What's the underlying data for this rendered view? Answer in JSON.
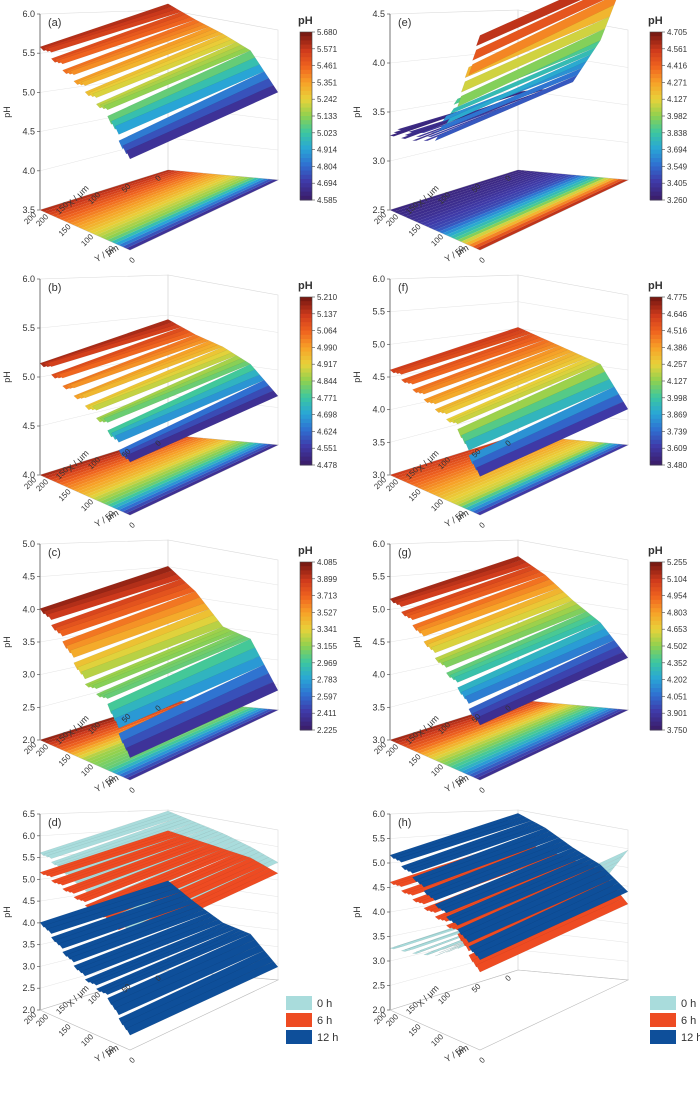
{
  "chart_data": [
    {
      "panel_label": "(a)",
      "type": "surface3d",
      "z_ticks": [
        "6.0",
        "5.5",
        "5.0",
        "4.5",
        "4.0",
        "3.5"
      ],
      "z_label": "pH",
      "x_label": "X / μm",
      "y_label": "Y / μm",
      "x_ticks": [
        "0",
        "50",
        "100",
        "150",
        "200"
      ],
      "y_ticks": [
        "200",
        "150",
        "100",
        "50",
        "0"
      ],
      "colorbar_title": "pH",
      "colorbar_ticks": [
        "5.680",
        "5.571",
        "5.461",
        "5.351",
        "5.242",
        "5.133",
        "5.023",
        "4.914",
        "4.804",
        "4.694",
        "4.585"
      ],
      "profile_y": [
        200,
        150,
        100,
        50,
        0
      ],
      "profile_ph": [
        5.62,
        5.45,
        5.3,
        5.12,
        4.62
      ]
    },
    {
      "panel_label": "(e)",
      "type": "surface3d",
      "z_ticks": [
        "4.5",
        "4.0",
        "3.5",
        "3.0",
        "2.5"
      ],
      "z_label": "pH",
      "x_label": "X / μm",
      "y_label": "Y / μm",
      "x_ticks": [
        "0",
        "50",
        "100",
        "150",
        "200"
      ],
      "y_ticks": [
        "200",
        "150",
        "100",
        "50",
        "0"
      ],
      "colorbar_title": "pH",
      "colorbar_ticks": [
        "4.705",
        "4.561",
        "4.416",
        "4.271",
        "4.127",
        "3.982",
        "3.838",
        "3.694",
        "3.549",
        "3.405",
        "3.260"
      ],
      "profile_y": [
        200,
        150,
        100,
        50,
        0
      ],
      "profile_ph": [
        3.3,
        3.35,
        3.45,
        3.9,
        4.65
      ]
    },
    {
      "panel_label": "(b)",
      "type": "surface3d",
      "z_ticks": [
        "6.0",
        "5.5",
        "5.0",
        "4.5",
        "4.0"
      ],
      "z_label": "pH",
      "x_label": "X / μm",
      "y_label": "Y / μm",
      "x_ticks": [
        "0",
        "50",
        "100",
        "150",
        "200"
      ],
      "y_ticks": [
        "200",
        "150",
        "100",
        "50",
        "0"
      ],
      "colorbar_title": "pH",
      "colorbar_ticks": [
        "5.210",
        "5.137",
        "5.064",
        "4.990",
        "4.917",
        "4.844",
        "4.771",
        "4.698",
        "4.624",
        "4.551",
        "4.478"
      ],
      "profile_y": [
        200,
        150,
        100,
        50,
        0
      ],
      "profile_ph": [
        5.18,
        5.05,
        4.95,
        4.8,
        4.5
      ]
    },
    {
      "panel_label": "(f)",
      "type": "surface3d",
      "z_ticks": [
        "6.0",
        "5.5",
        "5.0",
        "4.5",
        "4.0",
        "3.5",
        "3.0"
      ],
      "z_label": "pH",
      "x_label": "X / μm",
      "y_label": "Y / μm",
      "x_ticks": [
        "0",
        "50",
        "100",
        "150",
        "200"
      ],
      "y_ticks": [
        "200",
        "150",
        "100",
        "50",
        "0"
      ],
      "colorbar_title": "pH",
      "colorbar_ticks": [
        "4.775",
        "4.646",
        "4.516",
        "4.386",
        "4.257",
        "4.127",
        "3.998",
        "3.869",
        "3.739",
        "3.609",
        "3.480"
      ],
      "profile_y": [
        200,
        150,
        100,
        50,
        0
      ],
      "profile_ph": [
        4.65,
        4.5,
        4.35,
        4.2,
        3.55
      ]
    },
    {
      "panel_label": "(c)",
      "type": "surface3d",
      "z_ticks": [
        "5.0",
        "4.5",
        "4.0",
        "3.5",
        "3.0",
        "2.5",
        "2.0"
      ],
      "z_label": "pH",
      "x_label": "X / μm",
      "y_label": "Y / μm",
      "x_ticks": [
        "0",
        "50",
        "100",
        "150",
        "200"
      ],
      "y_ticks": [
        "200",
        "150",
        "100",
        "50",
        "0"
      ],
      "colorbar_title": "pH",
      "colorbar_ticks": [
        "4.085",
        "3.899",
        "3.713",
        "3.527",
        "3.341",
        "3.155",
        "2.969",
        "2.783",
        "2.597",
        "2.411",
        "2.225"
      ],
      "profile_y": [
        200,
        150,
        100,
        50,
        0
      ],
      "profile_ph": [
        4.05,
        3.7,
        3.2,
        3.05,
        2.3
      ]
    },
    {
      "panel_label": "(g)",
      "type": "surface3d",
      "z_ticks": [
        "6.0",
        "5.5",
        "5.0",
        "4.5",
        "4.0",
        "3.5",
        "3.0"
      ],
      "z_label": "pH",
      "x_label": "X / μm",
      "y_label": "Y / μm",
      "x_ticks": [
        "0",
        "50",
        "100",
        "150",
        "200"
      ],
      "y_ticks": [
        "200",
        "150",
        "100",
        "50",
        "0"
      ],
      "colorbar_title": "pH",
      "colorbar_ticks": [
        "5.255",
        "5.104",
        "4.954",
        "4.803",
        "4.653",
        "4.502",
        "4.352",
        "4.202",
        "4.051",
        "3.901",
        "3.750"
      ],
      "profile_y": [
        200,
        150,
        100,
        50,
        0
      ],
      "profile_ph": [
        5.2,
        4.95,
        4.6,
        4.3,
        3.8
      ]
    },
    {
      "panel_label": "(d)",
      "type": "surface3d_overlay",
      "z_ticks": [
        "6.5",
        "6.0",
        "5.5",
        "5.0",
        "4.5",
        "4.0",
        "3.5",
        "3.0",
        "2.5",
        "2.0"
      ],
      "z_label": "pH",
      "x_label": "X / μm",
      "y_label": "Y / μm",
      "x_ticks": [
        "0",
        "50",
        "100",
        "150",
        "200"
      ],
      "y_ticks": [
        "200",
        "150",
        "100",
        "50",
        "0"
      ],
      "profile_y": [
        200,
        150,
        100,
        50,
        0
      ],
      "series": [
        {
          "name": "0 h",
          "color": "#a9dcdc",
          "profile_ph": [
            5.65,
            5.45,
            5.25,
            5.0,
            4.7
          ]
        },
        {
          "name": "6 h",
          "color": "#ee4b22",
          "profile_ph": [
            5.2,
            5.05,
            4.9,
            4.75,
            4.45
          ]
        },
        {
          "name": "12 h",
          "color": "#0e4f9a",
          "profile_ph": [
            4.05,
            3.6,
            3.2,
            3.0,
            2.3
          ]
        }
      ]
    },
    {
      "panel_label": "(h)",
      "type": "surface3d_overlay",
      "z_ticks": [
        "6.0",
        "5.5",
        "5.0",
        "4.5",
        "4.0",
        "3.5",
        "3.0",
        "2.5",
        "2.0"
      ],
      "z_label": "pH",
      "x_label": "X / μm",
      "y_label": "Y / μm",
      "x_ticks": [
        "0",
        "50",
        "100",
        "150",
        "200"
      ],
      "y_ticks": [
        "200",
        "150",
        "100",
        "50",
        "0"
      ],
      "profile_y": [
        200,
        150,
        100,
        50,
        0
      ],
      "series": [
        {
          "name": "0 h",
          "color": "#a9dcdc",
          "profile_ph": [
            3.3,
            3.4,
            3.55,
            3.9,
            4.65
          ]
        },
        {
          "name": "6 h",
          "color": "#ee4b22",
          "profile_ph": [
            4.65,
            4.5,
            4.35,
            4.2,
            3.55
          ]
        },
        {
          "name": "12 h",
          "color": "#0e4f9a",
          "profile_ph": [
            5.2,
            4.95,
            4.6,
            4.3,
            3.8
          ]
        }
      ]
    }
  ]
}
